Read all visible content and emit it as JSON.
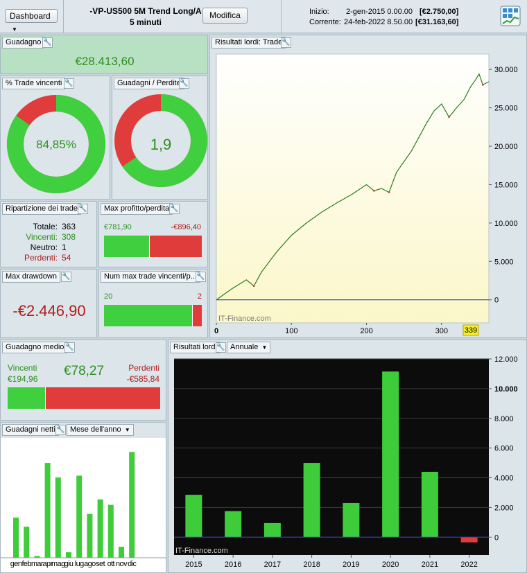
{
  "header": {
    "dashboard_label": "Dashboard",
    "strategy_name": "-VP-US500 5M Trend Long/A",
    "timeframe": "5 minuti",
    "modify_label": "Modifica",
    "start_label": "Inizio:",
    "start_date": "2-gen-2015 0.00.00",
    "start_value": "[€2.750,00]",
    "current_label": "Corrente:",
    "current_date": "24-feb-2022 8.50.00",
    "current_value": "[€31.163,60]"
  },
  "guadagno": {
    "title": "Guadagno",
    "value": "€28.413,60"
  },
  "trade_vincenti": {
    "title": "% Trade vincenti",
    "value": "84,85%",
    "fraction": 0.8485
  },
  "guadagni_perdite": {
    "title": "Guadagni / Perdite",
    "value": "1,9",
    "win_fraction": 0.655
  },
  "ripartizione": {
    "title": "Ripartizione dei trade",
    "rows": [
      {
        "label": "Totale:",
        "value": "363"
      },
      {
        "label": "Vincenti:",
        "value": "308"
      },
      {
        "label": "Neutro:",
        "value": "1"
      },
      {
        "label": "Perdenti:",
        "value": "54"
      }
    ]
  },
  "max_profitto": {
    "title": "Max profitto/perdita",
    "profit": "€781,90",
    "loss": "-€896,40",
    "profit_fraction": 0.466
  },
  "max_drawdown": {
    "title": "Max drawdown",
    "value": "-€2.446,90"
  },
  "num_max_trade": {
    "title": "Num max trade vincenti/p...",
    "wins": "20",
    "losses": "2",
    "win_fraction": 0.909
  },
  "guadagno_medio": {
    "title": "Guadagno medio",
    "win_label": "Vincenti",
    "win_value": "€194,96",
    "avg_value": "€78,27",
    "loss_label": "Perdenti",
    "loss_value": "-€585,84",
    "win_fraction": 0.25
  },
  "guadagni_netti": {
    "title": "Guadagni netti",
    "dropdown": "Mese dell'anno",
    "months": [
      "gen",
      "feb",
      "mar",
      "apr",
      "mag",
      "giu",
      "lug",
      "ago",
      "set",
      "ott",
      "nov",
      "dic"
    ],
    "values": [
      2.2,
      1.7,
      0.1,
      5.2,
      4.4,
      0.3,
      4.5,
      2.4,
      3.2,
      2.9,
      0.6,
      5.8
    ]
  },
  "equity_chart": {
    "title": "Risultati lordi: Trade",
    "watermark": "IT-Finance.com",
    "current_trade": "339",
    "chart_data": {
      "type": "line",
      "xlim": [
        0,
        363
      ],
      "ylim": [
        -3000,
        32000
      ],
      "x_ticks": [
        0,
        100,
        200,
        300
      ],
      "y_ticks": [
        0,
        5000,
        10000,
        15000,
        20000,
        25000,
        30000
      ],
      "y_tick_labels": [
        "0",
        "5.000",
        "10.000",
        "15.000",
        "20.000",
        "25.000",
        "30.000"
      ],
      "x": [
        0,
        20,
        40,
        50,
        60,
        80,
        100,
        120,
        140,
        160,
        180,
        200,
        210,
        220,
        230,
        240,
        260,
        280,
        290,
        300,
        310,
        320,
        330,
        339,
        345,
        350,
        355,
        363
      ],
      "y": [
        0,
        1400,
        2600,
        1800,
        3600,
        6200,
        8400,
        10000,
        11400,
        12600,
        13700,
        15000,
        14200,
        14500,
        14000,
        16600,
        19400,
        23000,
        24600,
        25500,
        23800,
        25000,
        26100,
        27800,
        28600,
        29400,
        28000,
        28400
      ]
    }
  },
  "annual_chart": {
    "title": "Risultati lordi",
    "dropdown": "Annuale",
    "watermark": "IT-Finance.com",
    "chart_data": {
      "type": "bar",
      "categories": [
        "2015",
        "2016",
        "2017",
        "2018",
        "2019",
        "2020",
        "2021",
        "2022"
      ],
      "values": [
        2850,
        1750,
        950,
        5000,
        2300,
        11150,
        4400,
        -350
      ],
      "ylim": [
        -1200,
        12000
      ],
      "y_ticks": [
        0,
        2000,
        4000,
        6000,
        8000,
        10000,
        12000
      ],
      "y_tick_labels": [
        "0",
        "2.000",
        "4.000",
        "6.000",
        "8.000",
        "10.000",
        "12.000"
      ],
      "highlight_tick": "10.000"
    }
  },
  "colors": {
    "win": "#3fcf3f",
    "loss": "#e03c3c",
    "bar": "#3fcc3a"
  }
}
